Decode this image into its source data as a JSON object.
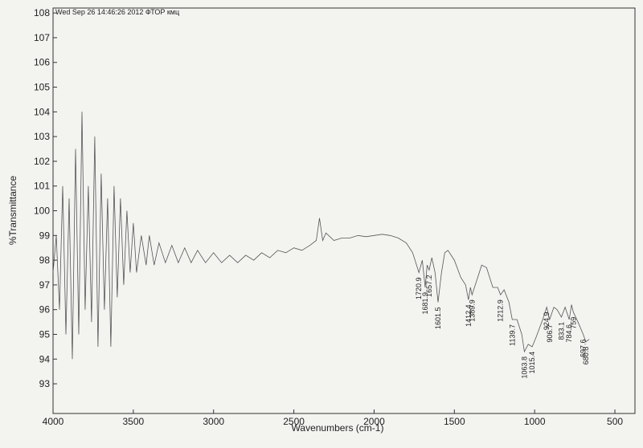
{
  "chart_data": {
    "type": "line",
    "title": "Wed Sep 26 14:46:26 2012 ФТОР кмц",
    "x_label": "Wavenumbers (cm-1)",
    "y_label": "%Transmittance",
    "color": "#555555",
    "xlim": [
      4000,
      375
    ],
    "ylim": [
      91.8,
      108.2
    ],
    "xticks": [
      4000,
      3500,
      3000,
      2500,
      2000,
      1500,
      1000,
      500
    ],
    "yticks": [
      93,
      94,
      95,
      96,
      97,
      98,
      99,
      100,
      101,
      102,
      103,
      104,
      105,
      106,
      107,
      108
    ],
    "x": [
      4000,
      3980,
      3960,
      3940,
      3920,
      3900,
      3880,
      3860,
      3840,
      3820,
      3800,
      3780,
      3760,
      3740,
      3720,
      3700,
      3680,
      3660,
      3640,
      3620,
      3600,
      3580,
      3560,
      3540,
      3520,
      3500,
      3480,
      3450,
      3420,
      3400,
      3370,
      3340,
      3300,
      3260,
      3220,
      3180,
      3140,
      3100,
      3050,
      3000,
      2950,
      2900,
      2850,
      2800,
      2750,
      2700,
      2650,
      2600,
      2550,
      2500,
      2450,
      2400,
      2360,
      2340,
      2320,
      2300,
      2250,
      2200,
      2150,
      2100,
      2050,
      2000,
      1950,
      1900,
      1850,
      1800,
      1760,
      1720.9,
      1700,
      1681.9,
      1670,
      1657.2,
      1640,
      1620,
      1601.5,
      1580,
      1560,
      1540,
      1500,
      1460,
      1430,
      1412.4,
      1400,
      1389.9,
      1360,
      1330,
      1300,
      1260,
      1230,
      1212.9,
      1190,
      1160,
      1139.7,
      1110,
      1080,
      1063.8,
      1040,
      1015.4,
      990,
      950,
      924.9,
      906.7,
      880,
      860,
      833.1,
      810,
      784.6,
      770,
      759.0,
      730,
      697.6,
      680.8,
      660
    ],
    "values": [
      97.5,
      99,
      96,
      101,
      95,
      100.5,
      94,
      102.5,
      95,
      104,
      96,
      101,
      95.5,
      103,
      94.5,
      101.5,
      96,
      100.5,
      94.5,
      101,
      96.5,
      100.5,
      97,
      100,
      97.5,
      99.5,
      97.5,
      99,
      97.8,
      99,
      97.8,
      98.7,
      97.9,
      98.6,
      97.9,
      98.5,
      97.9,
      98.4,
      97.9,
      98.3,
      97.9,
      98.2,
      97.9,
      98.2,
      98.0,
      98.3,
      98.1,
      98.4,
      98.3,
      98.5,
      98.4,
      98.6,
      98.8,
      99.7,
      98.8,
      99.1,
      98.8,
      98.9,
      98.9,
      99.0,
      98.95,
      99.0,
      99.05,
      99.0,
      98.9,
      98.7,
      98.3,
      97.5,
      98.0,
      96.9,
      97.8,
      97.6,
      98.1,
      97.5,
      96.3,
      97.5,
      98.3,
      98.4,
      98.0,
      97.3,
      97.0,
      96.4,
      96.9,
      96.6,
      97.2,
      97.8,
      97.7,
      96.9,
      96.9,
      96.6,
      96.8,
      96.3,
      95.6,
      95.6,
      95.0,
      94.3,
      94.6,
      94.5,
      94.9,
      95.6,
      96.1,
      95.6,
      96.1,
      96.0,
      95.7,
      96.1,
      95.6,
      96.2,
      95.9,
      95.5,
      95.0,
      94.7,
      94.8
    ],
    "peaks": [
      1720.9,
      1681.9,
      1657.2,
      1601.5,
      1412.4,
      1389.9,
      1212.9,
      1139.7,
      1063.8,
      1015.4,
      924.9,
      906.7,
      833.1,
      784.6,
      759.0,
      697.6,
      680.8
    ]
  }
}
